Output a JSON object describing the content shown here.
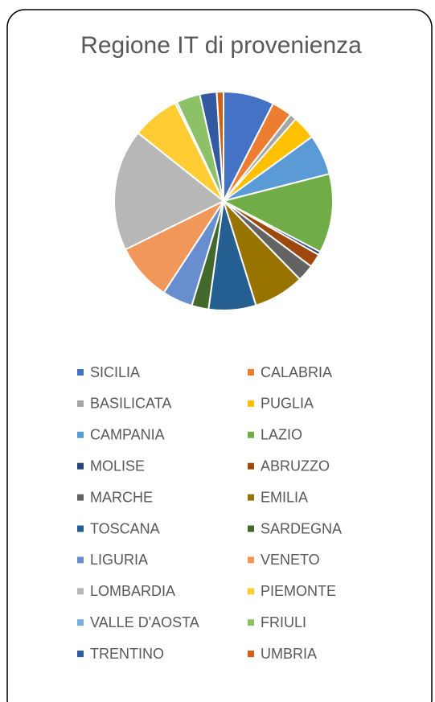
{
  "chart_data": {
    "type": "pie",
    "title": "Regione IT di provenienza",
    "categories": [
      "SICILIA",
      "CALABRIA",
      "BASILICATA",
      "PUGLIA",
      "CAMPANIA",
      "LAZIO",
      "MOLISE",
      "ABRUZZO",
      "MARCHE",
      "EMILIA",
      "TOSCANA",
      "SARDEGNA",
      "LIGURIA",
      "VENETO",
      "LOMBARDIA",
      "PIEMONTE",
      "VALLE D'AOSTA",
      "FRIULI",
      "TRENTINO",
      "UMBRIA"
    ],
    "values": [
      7.5,
      3,
      1,
      3.5,
      6,
      11.7,
      0.5,
      2,
      2.5,
      7.5,
      7,
      2.5,
      4.5,
      8.5,
      18,
      7,
      0.3,
      3.5,
      2.5,
      1
    ],
    "colors": [
      "#4472C4",
      "#ED7D31",
      "#A5A5A5",
      "#FFC000",
      "#5B9BD5",
      "#70AD47",
      "#264478",
      "#9E480E",
      "#636363",
      "#997300",
      "#255E91",
      "#43682B",
      "#698ED0",
      "#F1975A",
      "#B7B7B7",
      "#FFCD33",
      "#7CAFDD",
      "#8CC168",
      "#335AA1",
      "#D26012"
    ],
    "legend": "bottom"
  }
}
